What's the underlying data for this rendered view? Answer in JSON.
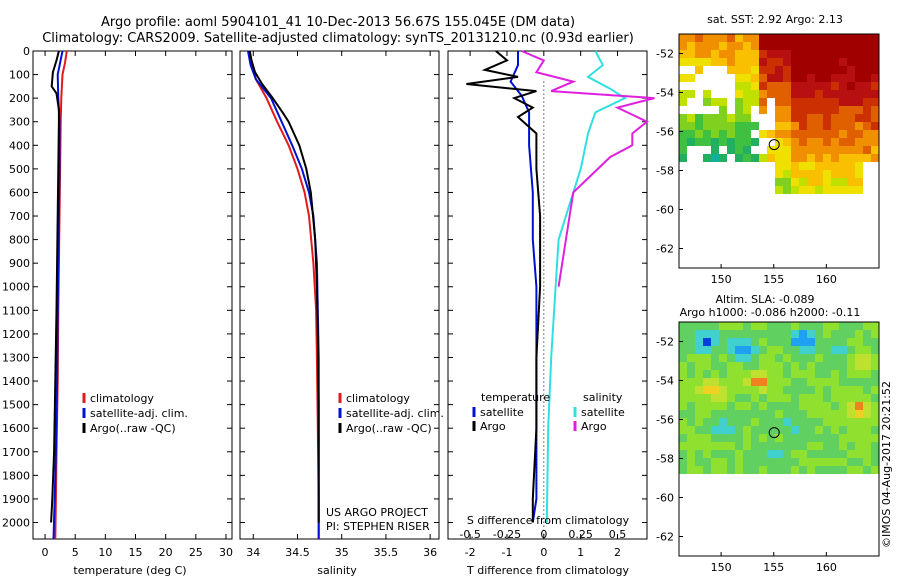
{
  "header": {
    "line1": "Argo profile: aoml 5904101_41 10-Dec-2013 56.67S 155.045E (DM data)",
    "line2": "Climatology: CARS2009. Satellite-adjusted climatology: synTS_20131210.nc (0.93d earlier)"
  },
  "depth_axis": {
    "ticks": [
      0,
      100,
      200,
      300,
      400,
      500,
      600,
      700,
      800,
      900,
      1000,
      1100,
      1200,
      1300,
      1400,
      1500,
      1600,
      1700,
      1800,
      1900,
      2000
    ],
    "range": [
      0,
      2070
    ]
  },
  "colors": {
    "climatology": "#e31a1c",
    "satellite": "#0010d0",
    "argo": "#000000",
    "argo_salinity": "#e020e0",
    "satellite_salinity": "#30e0e0"
  },
  "chart_data": [
    {
      "type": "line",
      "panel": "temperature",
      "xlabel": "temperature (deg C)",
      "xticks": [
        "0",
        "5",
        "10",
        "15",
        "20",
        "25",
        "30"
      ],
      "xlim": [
        -2,
        31
      ],
      "ylim": [
        2070,
        0
      ],
      "legend": [
        "climatology",
        "satellite-adj. clim.",
        "Argo(..raw -QC)"
      ],
      "series": [
        {
          "name": "climatology",
          "color": "#e31a1c",
          "x": [
            3.6,
            3.3,
            2.9,
            2.7,
            2.6,
            2.5,
            2.4,
            2.3,
            2.2,
            2.1,
            1.9,
            1.8,
            1.7
          ],
          "y": [
            0,
            50,
            100,
            200,
            300,
            500,
            700,
            900,
            1100,
            1400,
            1700,
            1900,
            2070
          ]
        },
        {
          "name": "satellite-adj. clim.",
          "color": "#0010d0",
          "x": [
            2.9,
            2.5,
            2.1,
            2.2,
            2.4,
            2.4,
            2.3,
            2.2,
            2.1,
            2.0,
            1.8,
            1.6,
            1.4
          ],
          "y": [
            0,
            50,
            100,
            200,
            300,
            500,
            700,
            900,
            1100,
            1400,
            1700,
            1900,
            2070
          ]
        },
        {
          "name": "Argo(..raw -QC)",
          "color": "#000000",
          "x": [
            2.3,
            1.9,
            1.3,
            1.1,
            1.9,
            2.3,
            2.3,
            2.2,
            2.1,
            2.0,
            1.9,
            1.7,
            1.5,
            1.2,
            1.0
          ],
          "y": [
            0,
            40,
            90,
            150,
            180,
            250,
            300,
            500,
            700,
            900,
            1100,
            1400,
            1700,
            1900,
            2000
          ]
        }
      ]
    },
    {
      "type": "line",
      "panel": "salinity",
      "xlabel": "salinity",
      "xticks": [
        "34",
        "34.5",
        "35",
        "35.5",
        "36"
      ],
      "xlim": [
        33.85,
        36.1
      ],
      "ylim": [
        2070,
        0
      ],
      "legend": [
        "climatology",
        "satellite-adj. clim.",
        "Argo(..raw -QC)"
      ],
      "annotation": [
        "US ARGO PROJECT",
        "PI: STEPHEN RISER"
      ],
      "series": [
        {
          "name": "climatology",
          "color": "#e31a1c",
          "x": [
            33.96,
            33.99,
            34.03,
            34.15,
            34.27,
            34.4,
            34.5,
            34.58,
            34.63,
            34.68,
            34.71,
            34.72,
            34.73,
            34.74,
            34.74
          ],
          "y": [
            0,
            60,
            120,
            200,
            300,
            400,
            500,
            600,
            700,
            900,
            1100,
            1300,
            1600,
            1900,
            2070
          ]
        },
        {
          "name": "satellite-adj. clim.",
          "color": "#0010d0",
          "x": [
            33.94,
            33.97,
            34.03,
            34.2,
            34.32,
            34.44,
            34.55,
            34.63,
            34.68,
            34.72,
            34.73,
            34.74,
            34.74,
            34.74
          ],
          "y": [
            0,
            60,
            120,
            200,
            300,
            400,
            500,
            600,
            700,
            900,
            1100,
            1300,
            1600,
            2070
          ]
        },
        {
          "name": "Argo(..raw -QC)",
          "color": "#000000",
          "x": [
            33.96,
            33.98,
            34.02,
            34.1,
            34.22,
            34.33,
            34.4,
            34.52,
            34.6,
            34.65,
            34.7,
            34.72,
            34.73,
            34.74,
            34.74
          ],
          "y": [
            0,
            40,
            90,
            140,
            200,
            260,
            300,
            400,
            500,
            600,
            800,
            1000,
            1200,
            1500,
            2000
          ]
        }
      ]
    },
    {
      "type": "line",
      "panel": "differences",
      "xlabel_s": "S difference from climatology",
      "xlabel_t": "T difference from climatology",
      "xticks_s": [
        "-0.5",
        "-0.25",
        "0",
        "0.25",
        "0.5"
      ],
      "xticks_t": [
        "-2",
        "-1",
        "0",
        "1",
        "2"
      ],
      "xlim_t": [
        -2.6,
        2.8
      ],
      "ylim": [
        2070,
        0
      ],
      "legend_headers": [
        "temperature",
        "salinity"
      ],
      "legend": [
        "satellite",
        "Argo",
        "satellite",
        "Argo"
      ],
      "series": [
        {
          "name": "T satellite",
          "color": "#0010d0",
          "x": [
            -0.7,
            -0.7,
            -0.9,
            -0.6,
            -0.4,
            -0.4,
            -0.3,
            -0.3,
            -0.2,
            -0.2,
            -0.2,
            -0.2,
            -0.3
          ],
          "y": [
            0,
            60,
            130,
            190,
            260,
            400,
            600,
            800,
            1000,
            1300,
            1600,
            1900,
            2000
          ]
        },
        {
          "name": "T Argo",
          "color": "#000000",
          "x": [
            -1.3,
            -1.0,
            -1.6,
            -0.7,
            -2.1,
            -0.2,
            -0.8,
            -0.3,
            -0.7,
            -0.2,
            -0.2,
            -0.1,
            -0.1,
            -0.2,
            -0.2,
            -0.3,
            -0.3
          ],
          "y": [
            0,
            40,
            80,
            110,
            140,
            170,
            200,
            240,
            280,
            350,
            500,
            700,
            1000,
            1300,
            1600,
            1900,
            2000
          ]
        },
        {
          "name": "S satellite",
          "color": "#30e0e0",
          "x": [
            0.35,
            0.4,
            0.3,
            0.45,
            0.55,
            0.35,
            0.3,
            0.25,
            0.2,
            0.1,
            0.08,
            0.05,
            0.03,
            0.02
          ],
          "y": [
            0,
            60,
            110,
            160,
            200,
            260,
            350,
            500,
            600,
            800,
            1000,
            1300,
            1600,
            2000
          ]
        },
        {
          "name": "S Argo",
          "color": "#e020e0",
          "x": [
            -0.15,
            0.0,
            -0.05,
            0.2,
            0.05,
            0.75,
            0.5,
            0.7,
            0.6,
            0.6,
            0.45,
            0.2,
            0.15,
            0.1
          ],
          "y": [
            0,
            40,
            90,
            130,
            170,
            200,
            240,
            300,
            350,
            400,
            450,
            600,
            800,
            1000
          ]
        }
      ]
    },
    {
      "type": "heatmap",
      "panel": "sst-map",
      "title": "sat. SST: 2.92 Argo: 2.13",
      "xticks": [
        "150",
        "155",
        "160"
      ],
      "yticks": [
        "-52",
        "-54",
        "-56",
        "-58",
        "-60",
        "-62"
      ],
      "xlim": [
        146,
        165
      ],
      "ylim": [
        -63,
        -51
      ],
      "marker": {
        "lon": 155.045,
        "lat": -56.67
      }
    },
    {
      "type": "heatmap",
      "panel": "sla-map",
      "title": "Altim. SLA: -0.089",
      "subtitle": "Argo h1000: -0.086 h2000: -0.11",
      "xticks": [
        "150",
        "155",
        "160"
      ],
      "yticks": [
        "-52",
        "-54",
        "-56",
        "-58",
        "-60",
        "-62"
      ],
      "xlim": [
        146,
        165
      ],
      "ylim": [
        -63,
        -51
      ],
      "marker": {
        "lon": 155.045,
        "lat": -56.67
      }
    }
  ],
  "watermark": "©IMOS 04-Aug-2017 20:21:52"
}
